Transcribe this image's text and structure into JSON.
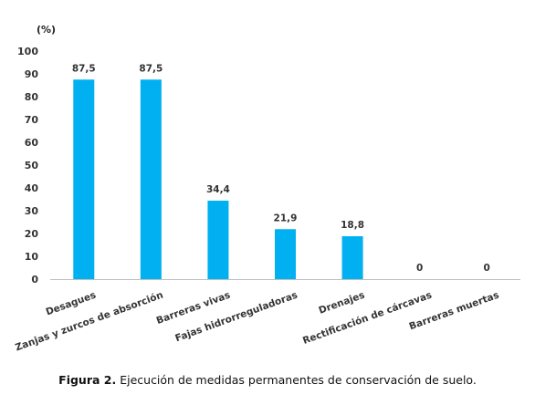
{
  "chart_data": {
    "type": "bar",
    "unit_label": "(%)",
    "categories": [
      "Desagues",
      "Zanjas y zurcos de absorción",
      "Barreras vivas",
      "Fajas hidrorreguladoras",
      "Drenajes",
      "Rectificación de cárcavas",
      "Barreras muertas"
    ],
    "values": [
      87.5,
      87.5,
      34.4,
      21.9,
      18.8,
      0,
      0
    ],
    "data_labels": [
      "87,5",
      "87,5",
      "34,4",
      "21,9",
      "18,8",
      "0",
      "0"
    ],
    "ylim": [
      0,
      100
    ],
    "yticks": [
      0,
      10,
      20,
      30,
      40,
      50,
      60,
      70,
      80,
      90,
      100
    ],
    "grid": false,
    "bar_color": "#00B0F0"
  },
  "caption": {
    "prefix": "Figura 2.",
    "text": " Ejecución de medidas permanentes de conservación de suelo."
  }
}
